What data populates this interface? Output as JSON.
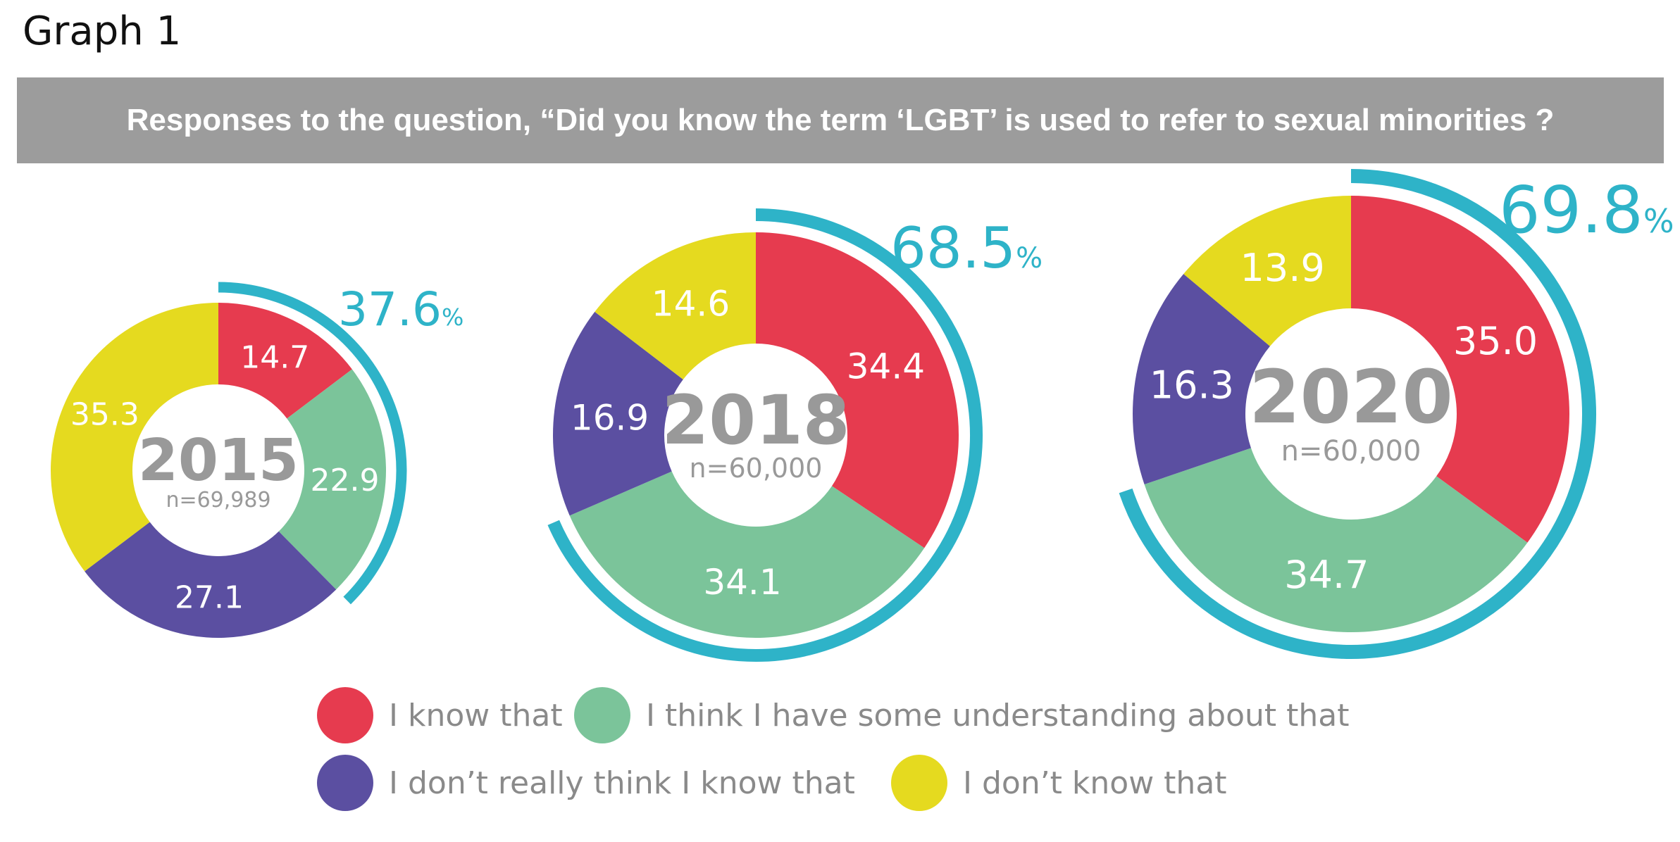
{
  "header": {
    "graph_label": "Graph 1",
    "banner": "Responses to the question, “Did you know the term ‘LGBT’ is used to refer to sexual minorities ?"
  },
  "colors": {
    "know": "#e63b4f",
    "some_understanding": "#7bc49a",
    "dont_really": "#5b4fa1",
    "dont_know": "#e5da1f",
    "accent_arc": "#2eb3c8",
    "center_text": "#999999"
  },
  "chart_data": {
    "type": "pie",
    "categories": [
      "I know that",
      "I think I have some understanding about that",
      "I don’t really think I know that",
      "I don’t know that"
    ],
    "series": [
      {
        "name": "2015",
        "n_label": "n=69,989",
        "values": [
          14.7,
          22.9,
          27.1,
          35.3
        ],
        "highlight_total": "37.6",
        "highlight_unit": "%"
      },
      {
        "name": "2018",
        "n_label": "n=60,000",
        "values": [
          34.4,
          34.1,
          16.9,
          14.6
        ],
        "highlight_total": "68.5",
        "highlight_unit": "%"
      },
      {
        "name": "2020",
        "n_label": "n=60,000",
        "values": [
          35.0,
          34.7,
          16.3,
          13.9
        ],
        "highlight_total": "69.8",
        "highlight_unit": "%"
      }
    ],
    "legend_placement": "bottom"
  },
  "legend": {
    "items": [
      {
        "label": "I know that",
        "color_key": "know"
      },
      {
        "label": "I think I have some understanding about that",
        "color_key": "some_understanding"
      },
      {
        "label": "I don’t really think I know that",
        "color_key": "dont_really"
      },
      {
        "label": "I don’t know that",
        "color_key": "dont_know"
      }
    ]
  }
}
